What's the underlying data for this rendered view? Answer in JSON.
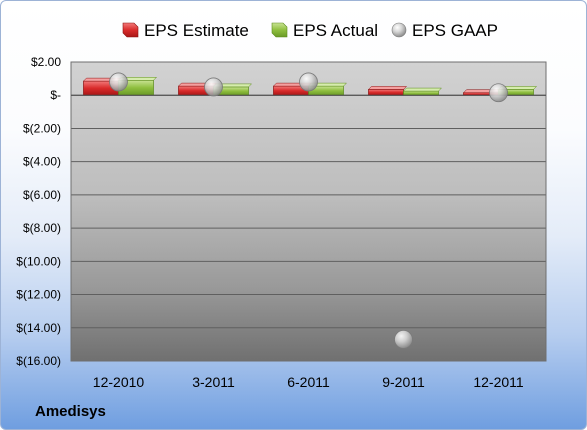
{
  "company_label": "Amedisys",
  "colors": {
    "estimate": "#d92b2b",
    "actual": "#8fbf3f",
    "gaap": "#c0c0c0"
  },
  "chart_data": {
    "type": "bar",
    "categories": [
      "12-2010",
      "3-2011",
      "6-2011",
      "9-2011",
      "12-2011"
    ],
    "series": [
      {
        "name": "EPS Estimate",
        "kind": "bar",
        "values": [
          0.85,
          0.55,
          0.55,
          0.35,
          0.15
        ]
      },
      {
        "name": "EPS Actual",
        "kind": "bar",
        "values": [
          0.9,
          0.5,
          0.55,
          0.25,
          0.35
        ]
      },
      {
        "name": "EPS GAAP",
        "kind": "scatter",
        "values": [
          0.8,
          0.5,
          0.8,
          -14.7,
          0.15
        ]
      }
    ],
    "y_ticks": [
      "$2.00",
      "$-",
      "$(2.00)",
      "$(4.00)",
      "$(6.00)",
      "$(8.00)",
      "$(10.00)",
      "$(12.00)",
      "$(14.00)",
      "$(16.00)"
    ],
    "ylim": [
      -16,
      2
    ],
    "ystep": 2,
    "grid": true,
    "legend_position": "top"
  }
}
